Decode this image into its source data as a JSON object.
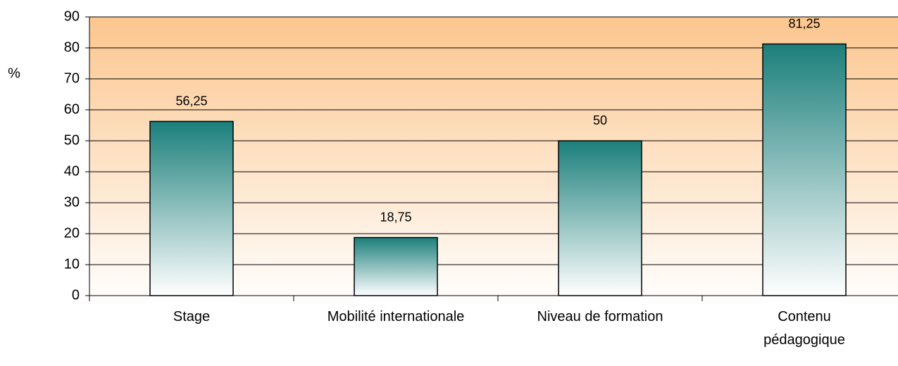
{
  "chart_data": {
    "type": "bar",
    "y_label": "%",
    "categories": [
      "Stage",
      "Mobilité internationale",
      "Niveau de formation",
      "Contenu pédagogique"
    ],
    "values": [
      56.25,
      18.75,
      50,
      81.25
    ],
    "value_labels": [
      "56,25",
      "18,75",
      "50",
      "81,25"
    ],
    "color": "#1b7f7b",
    "ylim": [
      0,
      90
    ],
    "yticks": [
      0,
      10,
      20,
      30,
      40,
      50,
      60,
      70,
      80,
      90
    ],
    "grid": true
  }
}
